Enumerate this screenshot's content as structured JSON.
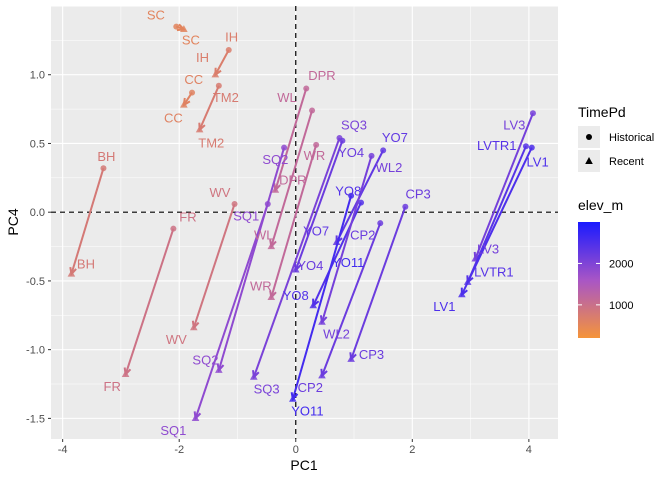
{
  "chart_data": {
    "type": "scatter",
    "xlabel": "PC1",
    "ylabel": "PC4",
    "xlim": [
      -4.2,
      4.5
    ],
    "ylim": [
      -1.65,
      1.5
    ],
    "xticks": [
      -4,
      -2,
      0,
      2,
      4
    ],
    "yticks": [
      -1.5,
      -1.0,
      -0.5,
      0.0,
      0.5,
      1.0
    ],
    "xtick_labels": [
      "-4",
      "-2",
      "0",
      "2",
      "4"
    ],
    "ytick_labels": [
      "-1.5",
      "-1.0",
      "-0.5",
      "0.0",
      "0.5",
      "1.0"
    ],
    "reference_lines": {
      "x": 0,
      "y": 0,
      "style": "dashed"
    },
    "legend_shape": {
      "title": "TimePd",
      "entries": [
        {
          "label": "Historical",
          "shape": "circle"
        },
        {
          "label": "Recent",
          "shape": "triangle"
        }
      ]
    },
    "legend_color": {
      "title": "elev_m",
      "ticks": [
        1000,
        2000
      ],
      "tick_labels": [
        "1000",
        "2000"
      ],
      "range": [
        200,
        3000
      ],
      "low_color": "#F5943A",
      "high_color": "#1A1AFF"
    },
    "sites": [
      {
        "site": "SC",
        "elev": 550,
        "historical": [
          -2.05,
          1.35
        ],
        "recent": [
          -1.92,
          1.33
        ],
        "label_hist": [
          -2.4,
          1.43
        ],
        "label_rec": [
          -1.8,
          1.25
        ]
      },
      {
        "site": "IH",
        "elev": 700,
        "historical": [
          -1.15,
          1.18
        ],
        "recent": [
          -1.38,
          1.0
        ],
        "label_hist": [
          -1.1,
          1.27
        ],
        "label_rec": [
          -1.6,
          1.12
        ]
      },
      {
        "site": "CC",
        "elev": 600,
        "historical": [
          -1.78,
          0.87
        ],
        "recent": [
          -1.92,
          0.78
        ],
        "label_hist": [
          -1.75,
          0.96
        ],
        "label_rec": [
          -2.1,
          0.68
        ]
      },
      {
        "site": "TM2",
        "elev": 750,
        "historical": [
          -1.32,
          0.92
        ],
        "recent": [
          -1.65,
          0.6
        ],
        "label_hist": [
          -1.2,
          0.83
        ],
        "label_rec": [
          -1.45,
          0.5
        ]
      },
      {
        "site": "BH",
        "elev": 800,
        "historical": [
          -3.3,
          0.32
        ],
        "recent": [
          -3.85,
          -0.45
        ],
        "label_hist": [
          -3.25,
          0.4
        ],
        "label_rec": [
          -3.6,
          -0.38
        ]
      },
      {
        "site": "DPR",
        "elev": 1150,
        "historical": [
          0.18,
          0.9
        ],
        "recent": [
          -0.35,
          0.16
        ],
        "label_hist": [
          0.45,
          0.99
        ],
        "label_rec": [
          -0.05,
          0.23
        ]
      },
      {
        "site": "WL",
        "elev": 1150,
        "historical": [
          0.28,
          0.74
        ],
        "recent": [
          -0.42,
          -0.25
        ],
        "label_hist": [
          -0.15,
          0.83
        ],
        "label_rec": [
          -0.55,
          -0.17
        ]
      },
      {
        "site": "WR",
        "elev": 1150,
        "historical": [
          0.35,
          0.49
        ],
        "recent": [
          -0.42,
          -0.62
        ],
        "label_hist": [
          0.32,
          0.41
        ],
        "label_rec": [
          -0.6,
          -0.54
        ]
      },
      {
        "site": "WV",
        "elev": 900,
        "historical": [
          -1.05,
          0.06
        ],
        "recent": [
          -1.75,
          -0.84
        ],
        "label_hist": [
          -1.3,
          0.14
        ],
        "label_rec": [
          -2.05,
          -0.93
        ]
      },
      {
        "site": "FR",
        "elev": 950,
        "historical": [
          -2.1,
          -0.12
        ],
        "recent": [
          -2.92,
          -1.18
        ],
        "label_hist": [
          -1.85,
          -0.04
        ],
        "label_rec": [
          -3.15,
          -1.27
        ]
      },
      {
        "site": "SQ1",
        "elev": 1850,
        "historical": [
          -0.48,
          0.06
        ],
        "recent": [
          -1.72,
          -1.5
        ],
        "label_hist": [
          -0.85,
          -0.03
        ],
        "label_rec": [
          -2.1,
          -1.59
        ]
      },
      {
        "site": "SQ2",
        "elev": 1850,
        "historical": [
          -0.2,
          0.47
        ],
        "recent": [
          -1.32,
          -1.15
        ],
        "label_hist": [
          -0.35,
          0.38
        ],
        "label_rec": [
          -1.55,
          -1.08
        ]
      },
      {
        "site": "SQ3",
        "elev": 2050,
        "historical": [
          0.75,
          0.54
        ],
        "recent": [
          -0.72,
          -1.2
        ],
        "label_hist": [
          1.0,
          0.63
        ],
        "label_rec": [
          -0.5,
          -1.29
        ]
      },
      {
        "site": "YO4",
        "elev": 2200,
        "historical": [
          0.8,
          0.52
        ],
        "recent": [
          0.0,
          -0.42
        ],
        "label_hist": [
          0.95,
          0.43
        ],
        "label_rec": [
          0.25,
          -0.39
        ]
      },
      {
        "site": "YO7",
        "elev": 2300,
        "historical": [
          1.5,
          0.45
        ],
        "recent": [
          0.7,
          -0.22
        ],
        "label_hist": [
          1.7,
          0.54
        ],
        "label_rec": [
          0.35,
          -0.14
        ]
      },
      {
        "site": "YO8",
        "elev": 2450,
        "historical": [
          1.12,
          0.07
        ],
        "recent": [
          0.3,
          -0.68
        ],
        "label_hist": [
          0.9,
          0.15
        ],
        "label_rec": [
          0.0,
          -0.61
        ]
      },
      {
        "site": "YO11",
        "elev": 2600,
        "historical": [
          0.95,
          0.12
        ],
        "recent": [
          -0.05,
          -1.36
        ],
        "label_hist": [
          0.9,
          -0.37
        ],
        "label_rec": [
          0.2,
          -1.45
        ]
      },
      {
        "site": "WL2",
        "elev": 2100,
        "historical": [
          1.3,
          0.41
        ],
        "recent": [
          0.45,
          -0.8
        ],
        "label_hist": [
          1.6,
          0.32
        ],
        "label_rec": [
          0.7,
          -0.89
        ]
      },
      {
        "site": "CP2",
        "elev": 2200,
        "historical": [
          1.45,
          -0.08
        ],
        "recent": [
          0.45,
          -1.19
        ],
        "label_hist": [
          1.15,
          -0.17
        ],
        "label_rec": [
          0.25,
          -1.28
        ]
      },
      {
        "site": "CP3",
        "elev": 2200,
        "historical": [
          1.88,
          0.04
        ],
        "recent": [
          0.95,
          -1.07
        ],
        "label_hist": [
          2.1,
          0.13
        ],
        "label_rec": [
          1.3,
          -1.04
        ]
      },
      {
        "site": "LV3",
        "elev": 2100,
        "historical": [
          4.07,
          0.72
        ],
        "recent": [
          3.08,
          -0.34
        ],
        "label_hist": [
          3.75,
          0.63
        ],
        "label_rec": [
          3.3,
          -0.27
        ]
      },
      {
        "site": "LVTR1",
        "elev": 2400,
        "historical": [
          3.95,
          0.48
        ],
        "recent": [
          2.95,
          -0.51
        ],
        "label_hist": [
          3.45,
          0.48
        ],
        "label_rec": [
          3.4,
          -0.44
        ]
      },
      {
        "site": "LV1",
        "elev": 2500,
        "historical": [
          4.05,
          0.47
        ],
        "recent": [
          2.85,
          -0.6
        ],
        "label_hist": [
          4.15,
          0.36
        ],
        "label_rec": [
          2.55,
          -0.69
        ]
      }
    ]
  }
}
